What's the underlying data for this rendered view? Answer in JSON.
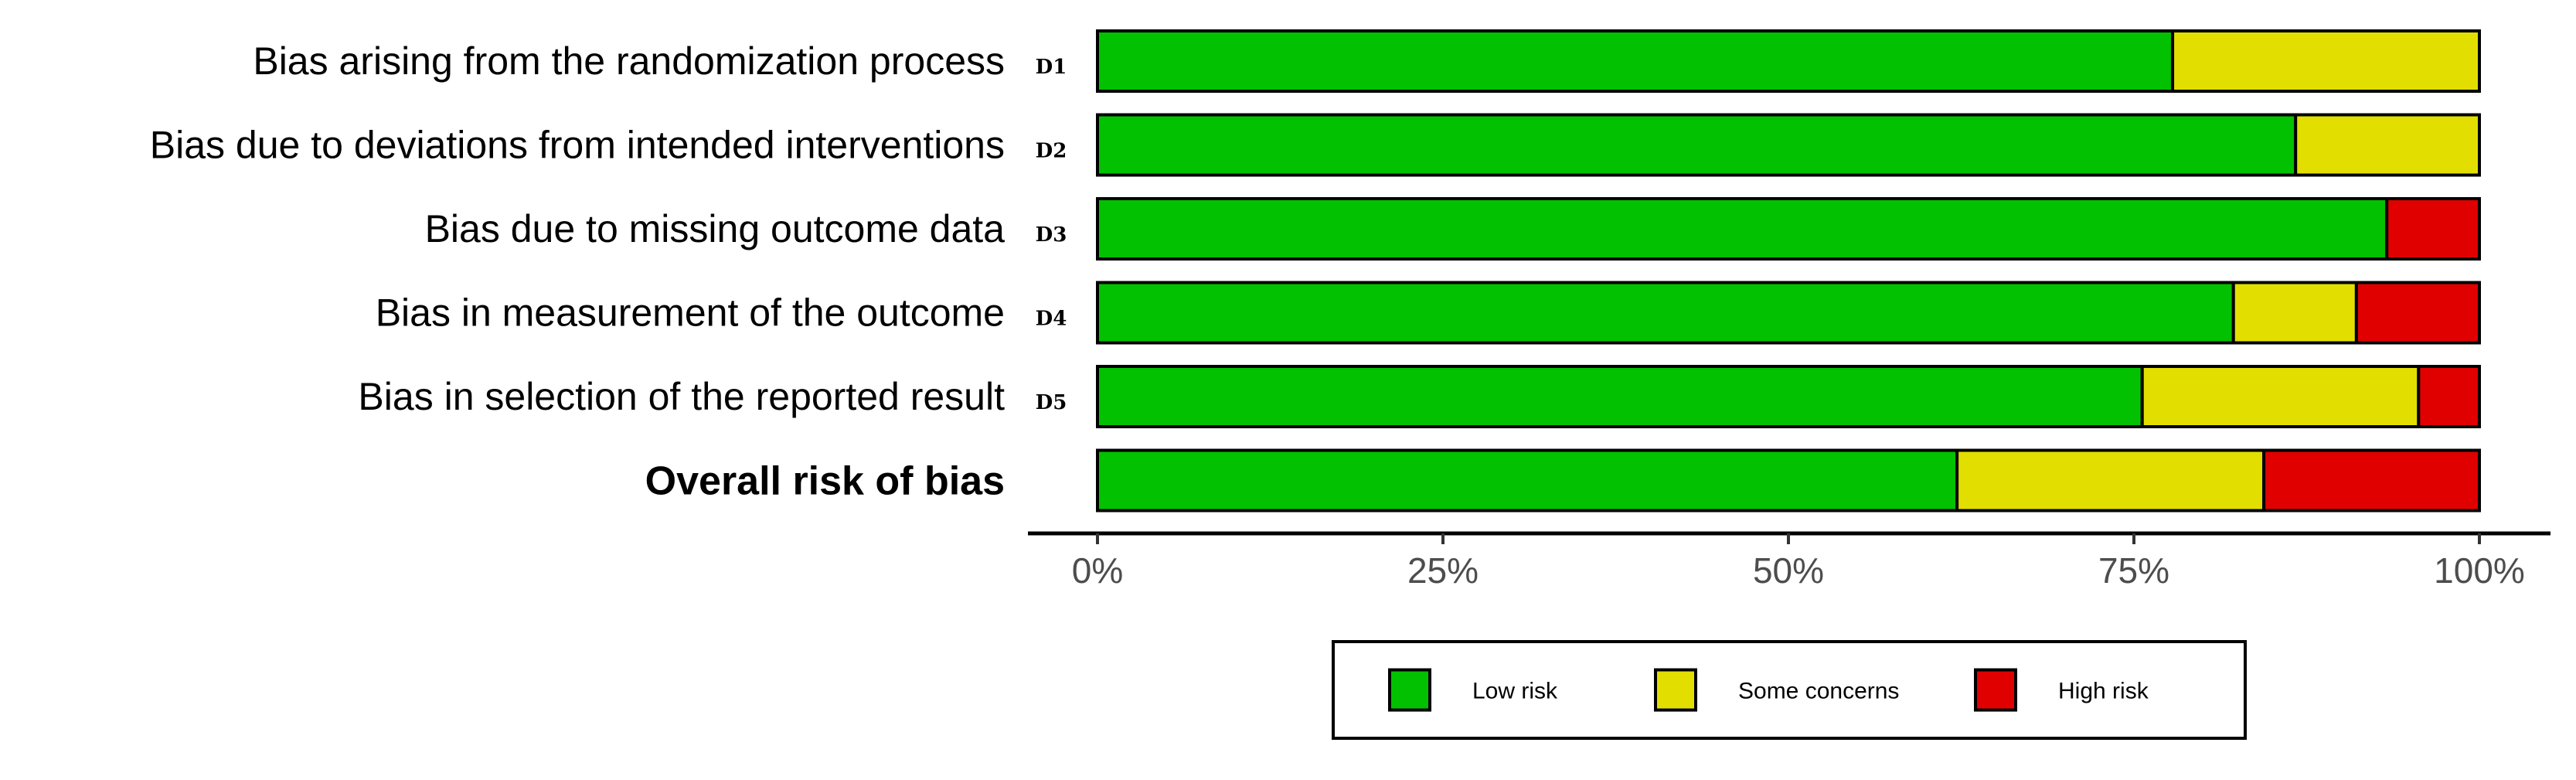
{
  "chart_data": {
    "type": "bar",
    "orientation": "horizontal",
    "stacked": true,
    "title": "",
    "xlabel": "",
    "ylabel": "",
    "xlim": [
      0,
      100
    ],
    "x_ticks": [
      "0%",
      "25%",
      "50%",
      "75%",
      "100%"
    ],
    "grid": false,
    "legend_position": "bottom",
    "categories": [
      "Bias arising from the randomization process",
      "Bias due to deviations from intended interventions",
      "Bias due to missing outcome data",
      "Bias in measurement of the outcome",
      "Bias in selection of the reported result",
      "Overall risk of bias"
    ],
    "category_codes": [
      "D1",
      "D2",
      "D3",
      "D4",
      "D5",
      ""
    ],
    "category_bold": [
      false,
      false,
      false,
      false,
      false,
      true
    ],
    "series": [
      {
        "name": "Low risk",
        "color": "#02c100",
        "values": [
          77.8,
          86.7,
          93.3,
          82.2,
          75.6,
          62.2
        ]
      },
      {
        "name": "Some concerns",
        "color": "#e2df00",
        "values": [
          22.2,
          13.3,
          0.0,
          8.9,
          20.0,
          22.2
        ]
      },
      {
        "name": "High risk",
        "color": "#e10000",
        "values": [
          0.0,
          0.0,
          6.7,
          8.9,
          4.4,
          15.6
        ]
      }
    ]
  }
}
